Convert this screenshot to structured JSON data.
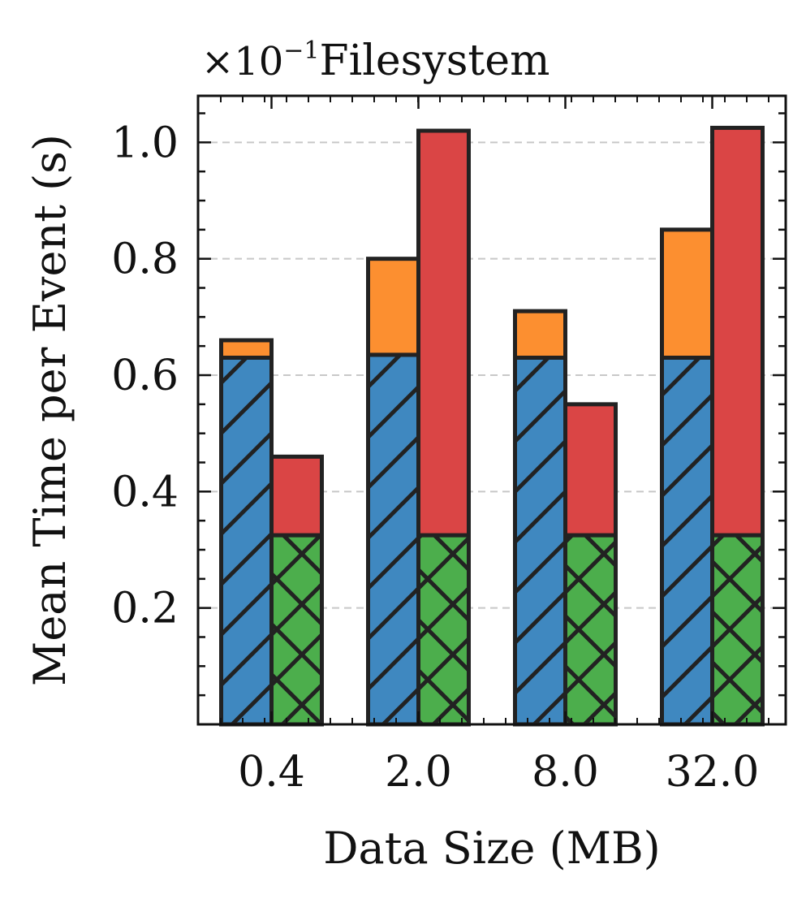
{
  "chart_data": {
    "type": "bar",
    "title": "Filesystem",
    "offset_label": "×10",
    "offset_exponent": "−1",
    "xlabel": "Data Size (MB)",
    "ylabel": "Mean Time per Event (s)",
    "categories": [
      "0.4",
      "2.0",
      "8.0",
      "32.0"
    ],
    "ylim": [
      0,
      1.08
    ],
    "yticks": [
      0.2,
      0.4,
      0.6,
      0.8,
      1.0
    ],
    "ytick_labels": [
      "0.2",
      "0.4",
      "0.6",
      "0.8",
      "1.0"
    ],
    "grid": "horizontal dashed",
    "stacked": true,
    "bars": [
      {
        "position": "left",
        "segments": [
          {
            "values": [
              0.63,
              0.635,
              0.63,
              0.63
            ],
            "color": "#3f88c0",
            "hatch": "diagonal"
          },
          {
            "values": [
              0.03,
              0.165,
              0.08,
              0.22
            ],
            "color": "#fc8f30",
            "hatch": "none"
          }
        ]
      },
      {
        "position": "right",
        "segments": [
          {
            "values": [
              0.325,
              0.325,
              0.325,
              0.325
            ],
            "color": "#4cae4c",
            "hatch": "cross"
          },
          {
            "values": [
              0.135,
              0.695,
              0.225,
              0.7
            ],
            "color": "#da4545",
            "hatch": "none"
          }
        ]
      }
    ],
    "colors": {
      "edge": "#222222",
      "grid": "#c8c8c8",
      "axis": "#111111"
    }
  }
}
